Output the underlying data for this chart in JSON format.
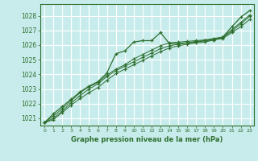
{
  "xlabel": "Graphe pression niveau de la mer (hPa)",
  "bg_color": "#c8ecec",
  "grid_color": "#ffffff",
  "line_color": "#2d6e2d",
  "ylim": [
    1020.5,
    1028.8
  ],
  "xlim": [
    -0.5,
    23.5
  ],
  "yticks": [
    1021,
    1022,
    1023,
    1024,
    1025,
    1026,
    1027,
    1028
  ],
  "xticks": [
    0,
    1,
    2,
    3,
    4,
    5,
    6,
    7,
    8,
    9,
    10,
    11,
    12,
    13,
    14,
    15,
    16,
    17,
    18,
    19,
    20,
    21,
    22,
    23
  ],
  "series1": [
    1020.7,
    1021.3,
    1021.8,
    1022.3,
    1022.8,
    1023.2,
    1023.5,
    1024.1,
    1025.4,
    1025.6,
    1026.2,
    1026.3,
    1026.3,
    1026.85,
    1026.1,
    1026.1,
    1026.15,
    1026.2,
    1026.3,
    1026.35,
    1026.55,
    1027.25,
    1027.9,
    1028.35
  ],
  "series2": [
    1020.7,
    1021.15,
    1021.65,
    1022.2,
    1022.75,
    1023.15,
    1023.45,
    1023.95,
    1024.35,
    1024.65,
    1025.05,
    1025.35,
    1025.65,
    1025.95,
    1026.15,
    1026.2,
    1026.25,
    1026.3,
    1026.35,
    1026.45,
    1026.55,
    1027.05,
    1027.55,
    1028.05
  ],
  "series3": [
    1020.7,
    1021.0,
    1021.5,
    1022.05,
    1022.55,
    1023.0,
    1023.35,
    1023.85,
    1024.25,
    1024.55,
    1024.85,
    1025.15,
    1025.45,
    1025.75,
    1025.95,
    1026.05,
    1026.15,
    1026.25,
    1026.3,
    1026.4,
    1026.5,
    1026.95,
    1027.45,
    1027.95
  ],
  "series4": [
    1020.7,
    1020.9,
    1021.4,
    1021.9,
    1022.35,
    1022.75,
    1023.1,
    1023.6,
    1024.05,
    1024.35,
    1024.65,
    1024.95,
    1025.25,
    1025.55,
    1025.8,
    1025.95,
    1026.05,
    1026.15,
    1026.2,
    1026.35,
    1026.45,
    1026.85,
    1027.25,
    1027.75
  ]
}
